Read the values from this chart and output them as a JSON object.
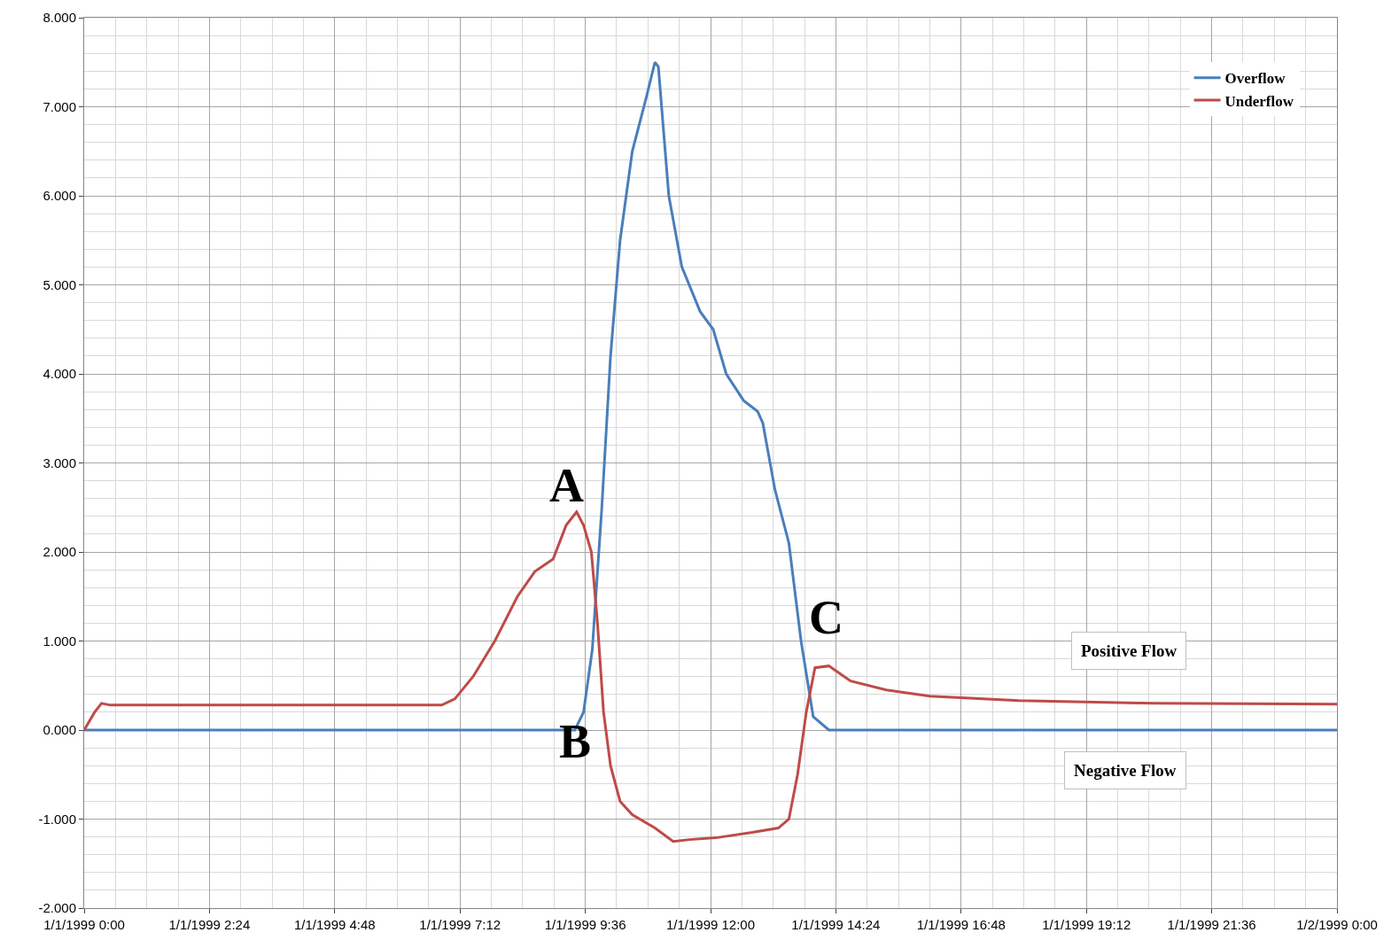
{
  "chart_data": {
    "type": "line",
    "series": [
      {
        "name": "Overflow",
        "color": "#4a7ebb",
        "x": [
          "1999-01-01T00:00",
          "1999-01-01T09:24",
          "1999-01-01T09:34",
          "1999-01-01T09:44",
          "1999-01-01T09:55",
          "1999-01-01T10:05",
          "1999-01-01T10:16",
          "1999-01-01T10:30",
          "1999-01-01T10:46",
          "1999-01-01T10:56",
          "1999-01-01T11:00",
          "1999-01-01T11:12",
          "1999-01-01T11:27",
          "1999-01-01T11:48",
          "1999-01-01T12:03",
          "1999-01-01T12:18",
          "1999-01-01T12:38",
          "1999-01-01T12:54",
          "1999-01-01T13:00",
          "1999-01-01T13:14",
          "1999-01-01T13:30",
          "1999-01-01T13:44",
          "1999-01-01T13:58",
          "1999-01-01T14:16",
          "1999-01-02T00:00"
        ],
        "values": [
          0,
          0,
          0.2,
          0.9,
          2.5,
          4.2,
          5.5,
          6.5,
          7.1,
          7.5,
          7.45,
          6.0,
          5.2,
          4.7,
          4.5,
          4.0,
          3.7,
          3.58,
          3.45,
          2.7,
          2.1,
          1.0,
          0.15,
          0,
          0
        ]
      },
      {
        "name": "Underflow",
        "color": "#be4b48",
        "x": [
          "1999-01-01T00:00",
          "1999-01-01T00:12",
          "1999-01-01T00:20",
          "1999-01-01T00:30",
          "1999-01-01T06:51",
          "1999-01-01T07:06",
          "1999-01-01T07:27",
          "1999-01-01T07:52",
          "1999-01-01T08:18",
          "1999-01-01T08:38",
          "1999-01-01T08:59",
          "1999-01-01T09:14",
          "1999-01-01T09:26",
          "1999-01-01T09:34",
          "1999-01-01T09:43",
          "1999-01-01T09:50",
          "1999-01-01T09:57",
          "1999-01-01T10:05",
          "1999-01-01T10:16",
          "1999-01-01T10:30",
          "1999-01-01T10:56",
          "1999-01-01T11:17",
          "1999-01-01T11:36",
          "1999-01-01T12:06",
          "1999-01-01T12:48",
          "1999-01-01T13:18",
          "1999-01-01T13:30",
          "1999-01-01T13:40",
          "1999-01-01T13:50",
          "1999-01-01T14:00",
          "1999-01-01T14:16",
          "1999-01-01T14:41",
          "1999-01-01T15:22",
          "1999-01-01T16:12",
          "1999-01-01T17:54",
          "1999-01-01T20:30",
          "1999-01-02T00:00"
        ],
        "values": [
          0,
          0.2,
          0.3,
          0.28,
          0.28,
          0.35,
          0.6,
          1.0,
          1.5,
          1.78,
          1.92,
          2.3,
          2.45,
          2.3,
          2.0,
          1.2,
          0.2,
          -0.4,
          -0.8,
          -0.95,
          -1.1,
          -1.25,
          -1.23,
          -1.21,
          -1.15,
          -1.1,
          -1.0,
          -0.5,
          0.2,
          0.7,
          0.72,
          0.55,
          0.45,
          0.38,
          0.33,
          0.3,
          0.29
        ]
      }
    ],
    "xlim": [
      "1999-01-01T00:00",
      "1999-01-02T00:00"
    ],
    "xticks": [
      {
        "value": "1999-01-01T00:00",
        "label": "1/1/1999 0:00"
      },
      {
        "value": "1999-01-01T02:24",
        "label": "1/1/1999 2:24"
      },
      {
        "value": "1999-01-01T04:48",
        "label": "1/1/1999 4:48"
      },
      {
        "value": "1999-01-01T07:12",
        "label": "1/1/1999 7:12"
      },
      {
        "value": "1999-01-01T09:36",
        "label": "1/1/1999 9:36"
      },
      {
        "value": "1999-01-01T12:00",
        "label": "1/1/1999 12:00"
      },
      {
        "value": "1999-01-01T14:24",
        "label": "1/1/1999 14:24"
      },
      {
        "value": "1999-01-01T16:48",
        "label": "1/1/1999 16:48"
      },
      {
        "value": "1999-01-01T19:12",
        "label": "1/1/1999 19:12"
      },
      {
        "value": "1999-01-01T21:36",
        "label": "1/1/1999 21:36"
      },
      {
        "value": "1999-01-02T00:00",
        "label": "1/2/1999 0:00"
      }
    ],
    "ylim": [
      -2,
      8
    ],
    "yticks": [
      {
        "value": -2,
        "label": "-2.000"
      },
      {
        "value": -1,
        "label": "-1.000"
      },
      {
        "value": 0,
        "label": "0.000"
      },
      {
        "value": 1,
        "label": "1.000"
      },
      {
        "value": 2,
        "label": "2.000"
      },
      {
        "value": 3,
        "label": "3.000"
      },
      {
        "value": 4,
        "label": "4.000"
      },
      {
        "value": 5,
        "label": "5.000"
      },
      {
        "value": 6,
        "label": "6.000"
      },
      {
        "value": 7,
        "label": "7.000"
      },
      {
        "value": 8,
        "label": "8.000"
      }
    ],
    "annotations": [
      "A",
      "B",
      "C",
      "Positive Flow",
      "Negative Flow"
    ],
    "grid": true,
    "legend": "top right",
    "marker": "none",
    "line_style": "solid"
  }
}
